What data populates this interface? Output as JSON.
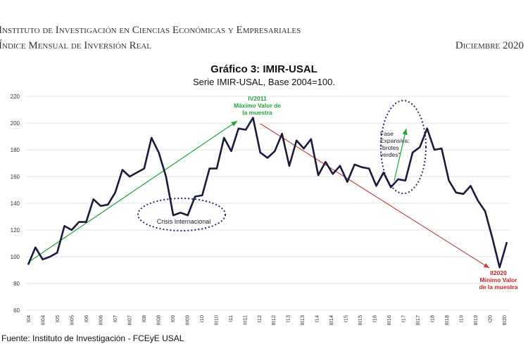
{
  "header": {
    "institute": "Instituto de Investigación en Ciencias Económicas y Empresariales",
    "index_name": "Índice Mensual de Inversión Real",
    "date": "Diciembre 2020"
  },
  "footer": {
    "source": "Fuente: Instituto de Investigación - FCEyE USAL"
  },
  "annotations": {
    "max_label": "IV2011",
    "max_line1": "Máximo Valor de",
    "max_line2": "la muestra",
    "min_label": "II2020",
    "min_line1": "Mínimo Valor",
    "min_line2": "de la muestra",
    "crisis": "Crisis Internacional",
    "fase1": "Fase",
    "fase2": "Expansiva:",
    "fase3": "\"brotes",
    "fase4": "verdes\""
  },
  "colors": {
    "line": "#1a1a3a",
    "green": "#1fa23a",
    "red": "#c23b3b",
    "grid": "#d8d8d8",
    "ellipse": "#1e2e6e"
  },
  "chart_data": {
    "type": "line",
    "title": "Gráfico 3: IMIR-USAL",
    "subtitle": "Serie IMIR-USAL, Base 2004=100.",
    "xlabel": "",
    "ylabel": "",
    "ylim": [
      60,
      220
    ],
    "y_ticks": [
      60,
      80,
      100,
      120,
      140,
      160,
      180,
      200,
      220
    ],
    "x_tick_labels": [
      "I04",
      "III04",
      "I05",
      "III05",
      "I06",
      "III06",
      "I07",
      "III07",
      "I08",
      "III08",
      "I09",
      "III09",
      "I10",
      "III10",
      "I11",
      "III11",
      "I12",
      "III12",
      "I13",
      "III13",
      "I14",
      "III14",
      "I15",
      "III15",
      "I16",
      "III16",
      "I17",
      "III17",
      "I18",
      "III18",
      "I19",
      "III19",
      "I20",
      "III20"
    ],
    "series": [
      {
        "name": "IMIR-USAL",
        "values": [
          94,
          107,
          98,
          100,
          103,
          123,
          120,
          126,
          126,
          143,
          138,
          139,
          148,
          165,
          160,
          163,
          166,
          189,
          178,
          160,
          131,
          133,
          131,
          145,
          146,
          166,
          166,
          189,
          179,
          196,
          195,
          204,
          178,
          174,
          179,
          192,
          168,
          187,
          181,
          188,
          161,
          171,
          162,
          168,
          156,
          169,
          167,
          166,
          153,
          163,
          152,
          158,
          157,
          178,
          182,
          196,
          180,
          181,
          157,
          148,
          147,
          153,
          142,
          134,
          114,
          92,
          111
        ]
      }
    ]
  }
}
